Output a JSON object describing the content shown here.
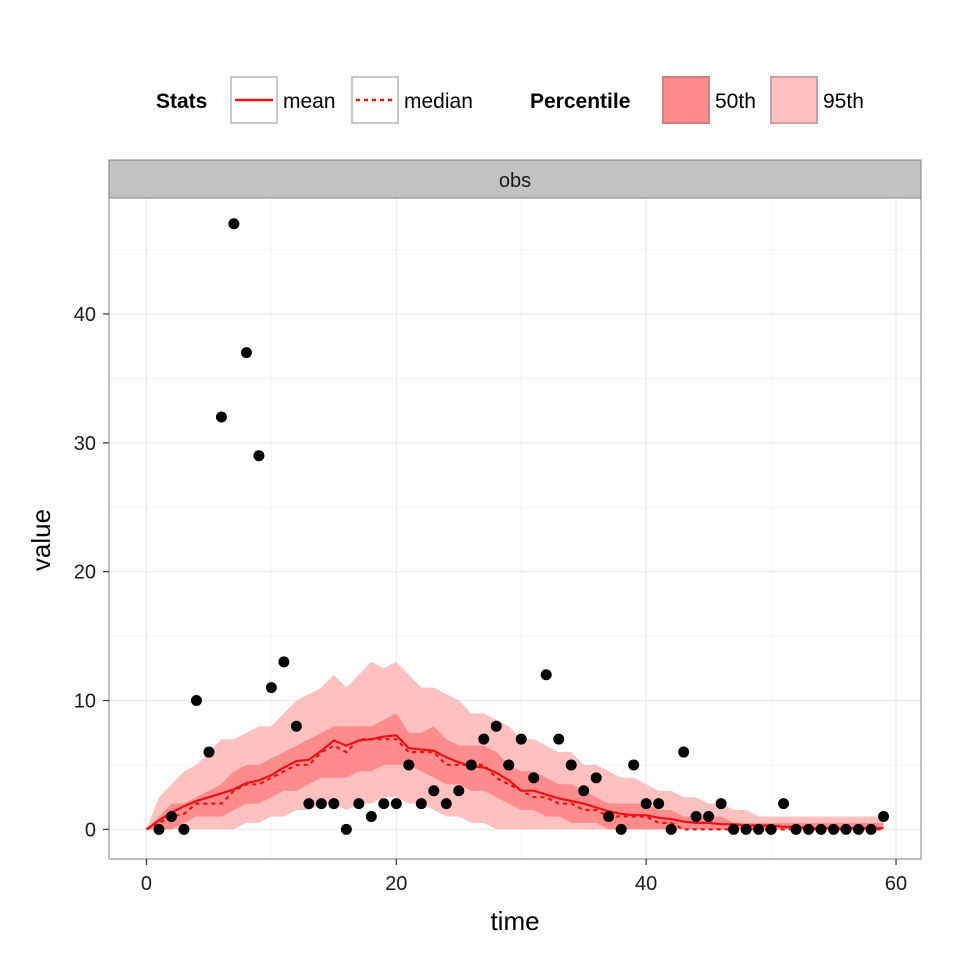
{
  "chart_data": {
    "type": "scatter",
    "panel_label": "obs",
    "xlabel": "time",
    "ylabel": "value",
    "xlim": [
      -3,
      62
    ],
    "ylim": [
      -2.3,
      49
    ],
    "x_ticks": [
      0,
      20,
      40,
      60
    ],
    "y_ticks": [
      0,
      10,
      20,
      30,
      40
    ],
    "grid": true,
    "legend_position": "top",
    "legend": {
      "stats_title": "Stats",
      "stats_items": [
        {
          "label": "mean",
          "style": "solid"
        },
        {
          "label": "median",
          "style": "dashed"
        }
      ],
      "percentile_title": "Percentile",
      "percentile_items": [
        {
          "label": "50th",
          "color": "#ff8c8c"
        },
        {
          "label": "95th",
          "color": "#ffc0c0"
        }
      ]
    },
    "colors": {
      "line": "#ee1111",
      "band50": "#ff8c8c",
      "band95": "#ffc0c0",
      "points": "#000000",
      "strip_bg": "#c2c2c2",
      "grid": "#ebebeb"
    },
    "observations": [
      {
        "x": 1,
        "y": 0
      },
      {
        "x": 2,
        "y": 1
      },
      {
        "x": 3,
        "y": 0
      },
      {
        "x": 4,
        "y": 10
      },
      {
        "x": 5,
        "y": 6
      },
      {
        "x": 6,
        "y": 32
      },
      {
        "x": 7,
        "y": 47
      },
      {
        "x": 8,
        "y": 37
      },
      {
        "x": 9,
        "y": 29
      },
      {
        "x": 10,
        "y": 11
      },
      {
        "x": 11,
        "y": 13
      },
      {
        "x": 12,
        "y": 8
      },
      {
        "x": 13,
        "y": 2
      },
      {
        "x": 14,
        "y": 2
      },
      {
        "x": 15,
        "y": 2
      },
      {
        "x": 16,
        "y": 0
      },
      {
        "x": 17,
        "y": 2
      },
      {
        "x": 18,
        "y": 1
      },
      {
        "x": 19,
        "y": 2
      },
      {
        "x": 20,
        "y": 2
      },
      {
        "x": 21,
        "y": 5
      },
      {
        "x": 22,
        "y": 2
      },
      {
        "x": 23,
        "y": 3
      },
      {
        "x": 24,
        "y": 2
      },
      {
        "x": 25,
        "y": 3
      },
      {
        "x": 26,
        "y": 5
      },
      {
        "x": 27,
        "y": 7
      },
      {
        "x": 28,
        "y": 8
      },
      {
        "x": 29,
        "y": 5
      },
      {
        "x": 30,
        "y": 7
      },
      {
        "x": 31,
        "y": 4
      },
      {
        "x": 32,
        "y": 12
      },
      {
        "x": 33,
        "y": 7
      },
      {
        "x": 34,
        "y": 5
      },
      {
        "x": 35,
        "y": 3
      },
      {
        "x": 36,
        "y": 4
      },
      {
        "x": 37,
        "y": 1
      },
      {
        "x": 38,
        "y": 0
      },
      {
        "x": 39,
        "y": 5
      },
      {
        "x": 40,
        "y": 2
      },
      {
        "x": 41,
        "y": 2
      },
      {
        "x": 42,
        "y": 0
      },
      {
        "x": 43,
        "y": 6
      },
      {
        "x": 44,
        "y": 1
      },
      {
        "x": 45,
        "y": 1
      },
      {
        "x": 46,
        "y": 2
      },
      {
        "x": 47,
        "y": 0
      },
      {
        "x": 48,
        "y": 0
      },
      {
        "x": 49,
        "y": 0
      },
      {
        "x": 50,
        "y": 0
      },
      {
        "x": 51,
        "y": 2
      },
      {
        "x": 52,
        "y": 0
      },
      {
        "x": 53,
        "y": 0
      },
      {
        "x": 54,
        "y": 0
      },
      {
        "x": 55,
        "y": 0
      },
      {
        "x": 56,
        "y": 0
      },
      {
        "x": 57,
        "y": 0
      },
      {
        "x": 58,
        "y": 0
      },
      {
        "x": 59,
        "y": 1
      }
    ],
    "summary": {
      "time": [
        0,
        1,
        2,
        3,
        4,
        5,
        6,
        7,
        8,
        9,
        10,
        11,
        12,
        13,
        14,
        15,
        16,
        17,
        18,
        19,
        20,
        21,
        22,
        23,
        24,
        25,
        26,
        27,
        28,
        29,
        30,
        31,
        32,
        33,
        34,
        35,
        36,
        37,
        38,
        39,
        40,
        41,
        42,
        43,
        44,
        45,
        46,
        47,
        48,
        49,
        50,
        51,
        52,
        53,
        54,
        55,
        56,
        57,
        58,
        59
      ],
      "mean": [
        0,
        0.7,
        1.3,
        1.8,
        2.2,
        2.5,
        2.8,
        3.1,
        3.6,
        3.8,
        4.2,
        4.8,
        5.3,
        5.4,
        6.1,
        6.9,
        6.5,
        6.9,
        7.0,
        7.2,
        7.3,
        6.3,
        6.2,
        6.1,
        5.6,
        5.2,
        4.9,
        4.8,
        4.4,
        3.8,
        3.0,
        3.0,
        2.7,
        2.4,
        2.2,
        2.0,
        1.7,
        1.4,
        1.2,
        1.1,
        1.1,
        0.9,
        0.8,
        0.6,
        0.5,
        0.5,
        0.4,
        0.4,
        0.3,
        0.3,
        0.3,
        0.2,
        0.2,
        0.1,
        0.1,
        0.1,
        0.1,
        0.1,
        0.1,
        0.1
      ],
      "median": [
        0,
        0.5,
        1,
        1.2,
        2,
        2,
        2,
        3,
        3.5,
        3.5,
        4,
        4.5,
        5,
        5,
        6,
        6.5,
        6,
        7,
        7,
        7,
        7,
        6,
        6,
        6,
        5,
        5,
        5,
        5,
        4,
        3.5,
        3,
        2.5,
        2.5,
        2,
        2,
        1.5,
        1.5,
        1,
        1,
        1,
        1,
        0.5,
        0.5,
        0,
        0,
        0,
        0,
        0,
        0,
        0,
        0,
        0,
        0,
        0,
        0,
        0,
        0,
        0,
        0,
        0
      ],
      "p50_low": [
        0,
        0,
        0,
        0.5,
        1,
        1,
        1,
        1.5,
        2,
        2,
        2.5,
        3,
        3,
        3.5,
        4,
        4,
        4,
        4.5,
        4.5,
        5,
        5,
        5,
        4.5,
        4,
        3.5,
        3.5,
        3,
        3,
        2.5,
        2,
        1.5,
        1.5,
        1,
        1,
        0.5,
        0.5,
        0.5,
        0,
        0,
        0,
        0,
        0,
        0,
        0,
        0,
        0,
        0,
        0,
        0,
        0,
        0,
        0,
        0,
        0,
        0,
        0,
        0,
        0,
        0,
        0
      ],
      "p50_high": [
        0,
        1,
        2,
        2,
        2.5,
        3,
        3.5,
        4.5,
        5,
        5,
        5.5,
        6,
        6.5,
        7,
        7.5,
        8,
        8,
        8,
        8,
        8.5,
        9,
        7.5,
        7.5,
        8,
        7,
        6.5,
        6.5,
        6.5,
        6,
        5,
        4.5,
        4.5,
        4,
        3.5,
        3.5,
        3,
        2.5,
        2,
        2,
        2,
        2,
        1.5,
        1.5,
        1,
        1,
        1,
        1,
        0.5,
        0.5,
        0.5,
        0.5,
        0.5,
        0.5,
        0.5,
        0.5,
        0.5,
        0.5,
        0.5,
        0.5,
        0.5
      ],
      "p95_low": [
        0,
        0,
        0,
        0,
        0,
        0,
        0,
        0,
        0.5,
        0.5,
        1,
        1,
        1.5,
        1.5,
        2,
        2,
        1.5,
        2,
        2,
        2.5,
        2.5,
        2,
        2,
        1.5,
        1,
        1,
        0.5,
        0.5,
        0,
        0,
        0,
        0,
        0,
        0,
        0,
        0,
        0,
        0,
        0,
        0,
        0,
        0,
        0,
        0,
        0,
        0,
        0,
        0,
        0,
        0,
        0,
        0,
        0,
        0,
        0,
        0,
        0,
        0,
        0,
        0
      ],
      "p95_high": [
        0,
        2.5,
        3.5,
        4.5,
        5,
        6,
        7,
        7,
        7.5,
        8,
        8,
        9,
        10,
        10.5,
        11,
        12,
        11,
        12,
        13,
        12.5,
        13,
        12,
        11,
        11,
        10.5,
        10,
        9,
        9,
        8.5,
        8,
        7,
        7,
        6.5,
        6,
        6,
        5,
        5,
        4.5,
        4,
        4,
        3.5,
        3,
        3,
        2.5,
        2.5,
        2,
        2,
        1.5,
        1.5,
        1,
        1,
        1,
        1,
        1,
        1,
        1,
        1,
        1,
        1,
        1
      ]
    }
  }
}
